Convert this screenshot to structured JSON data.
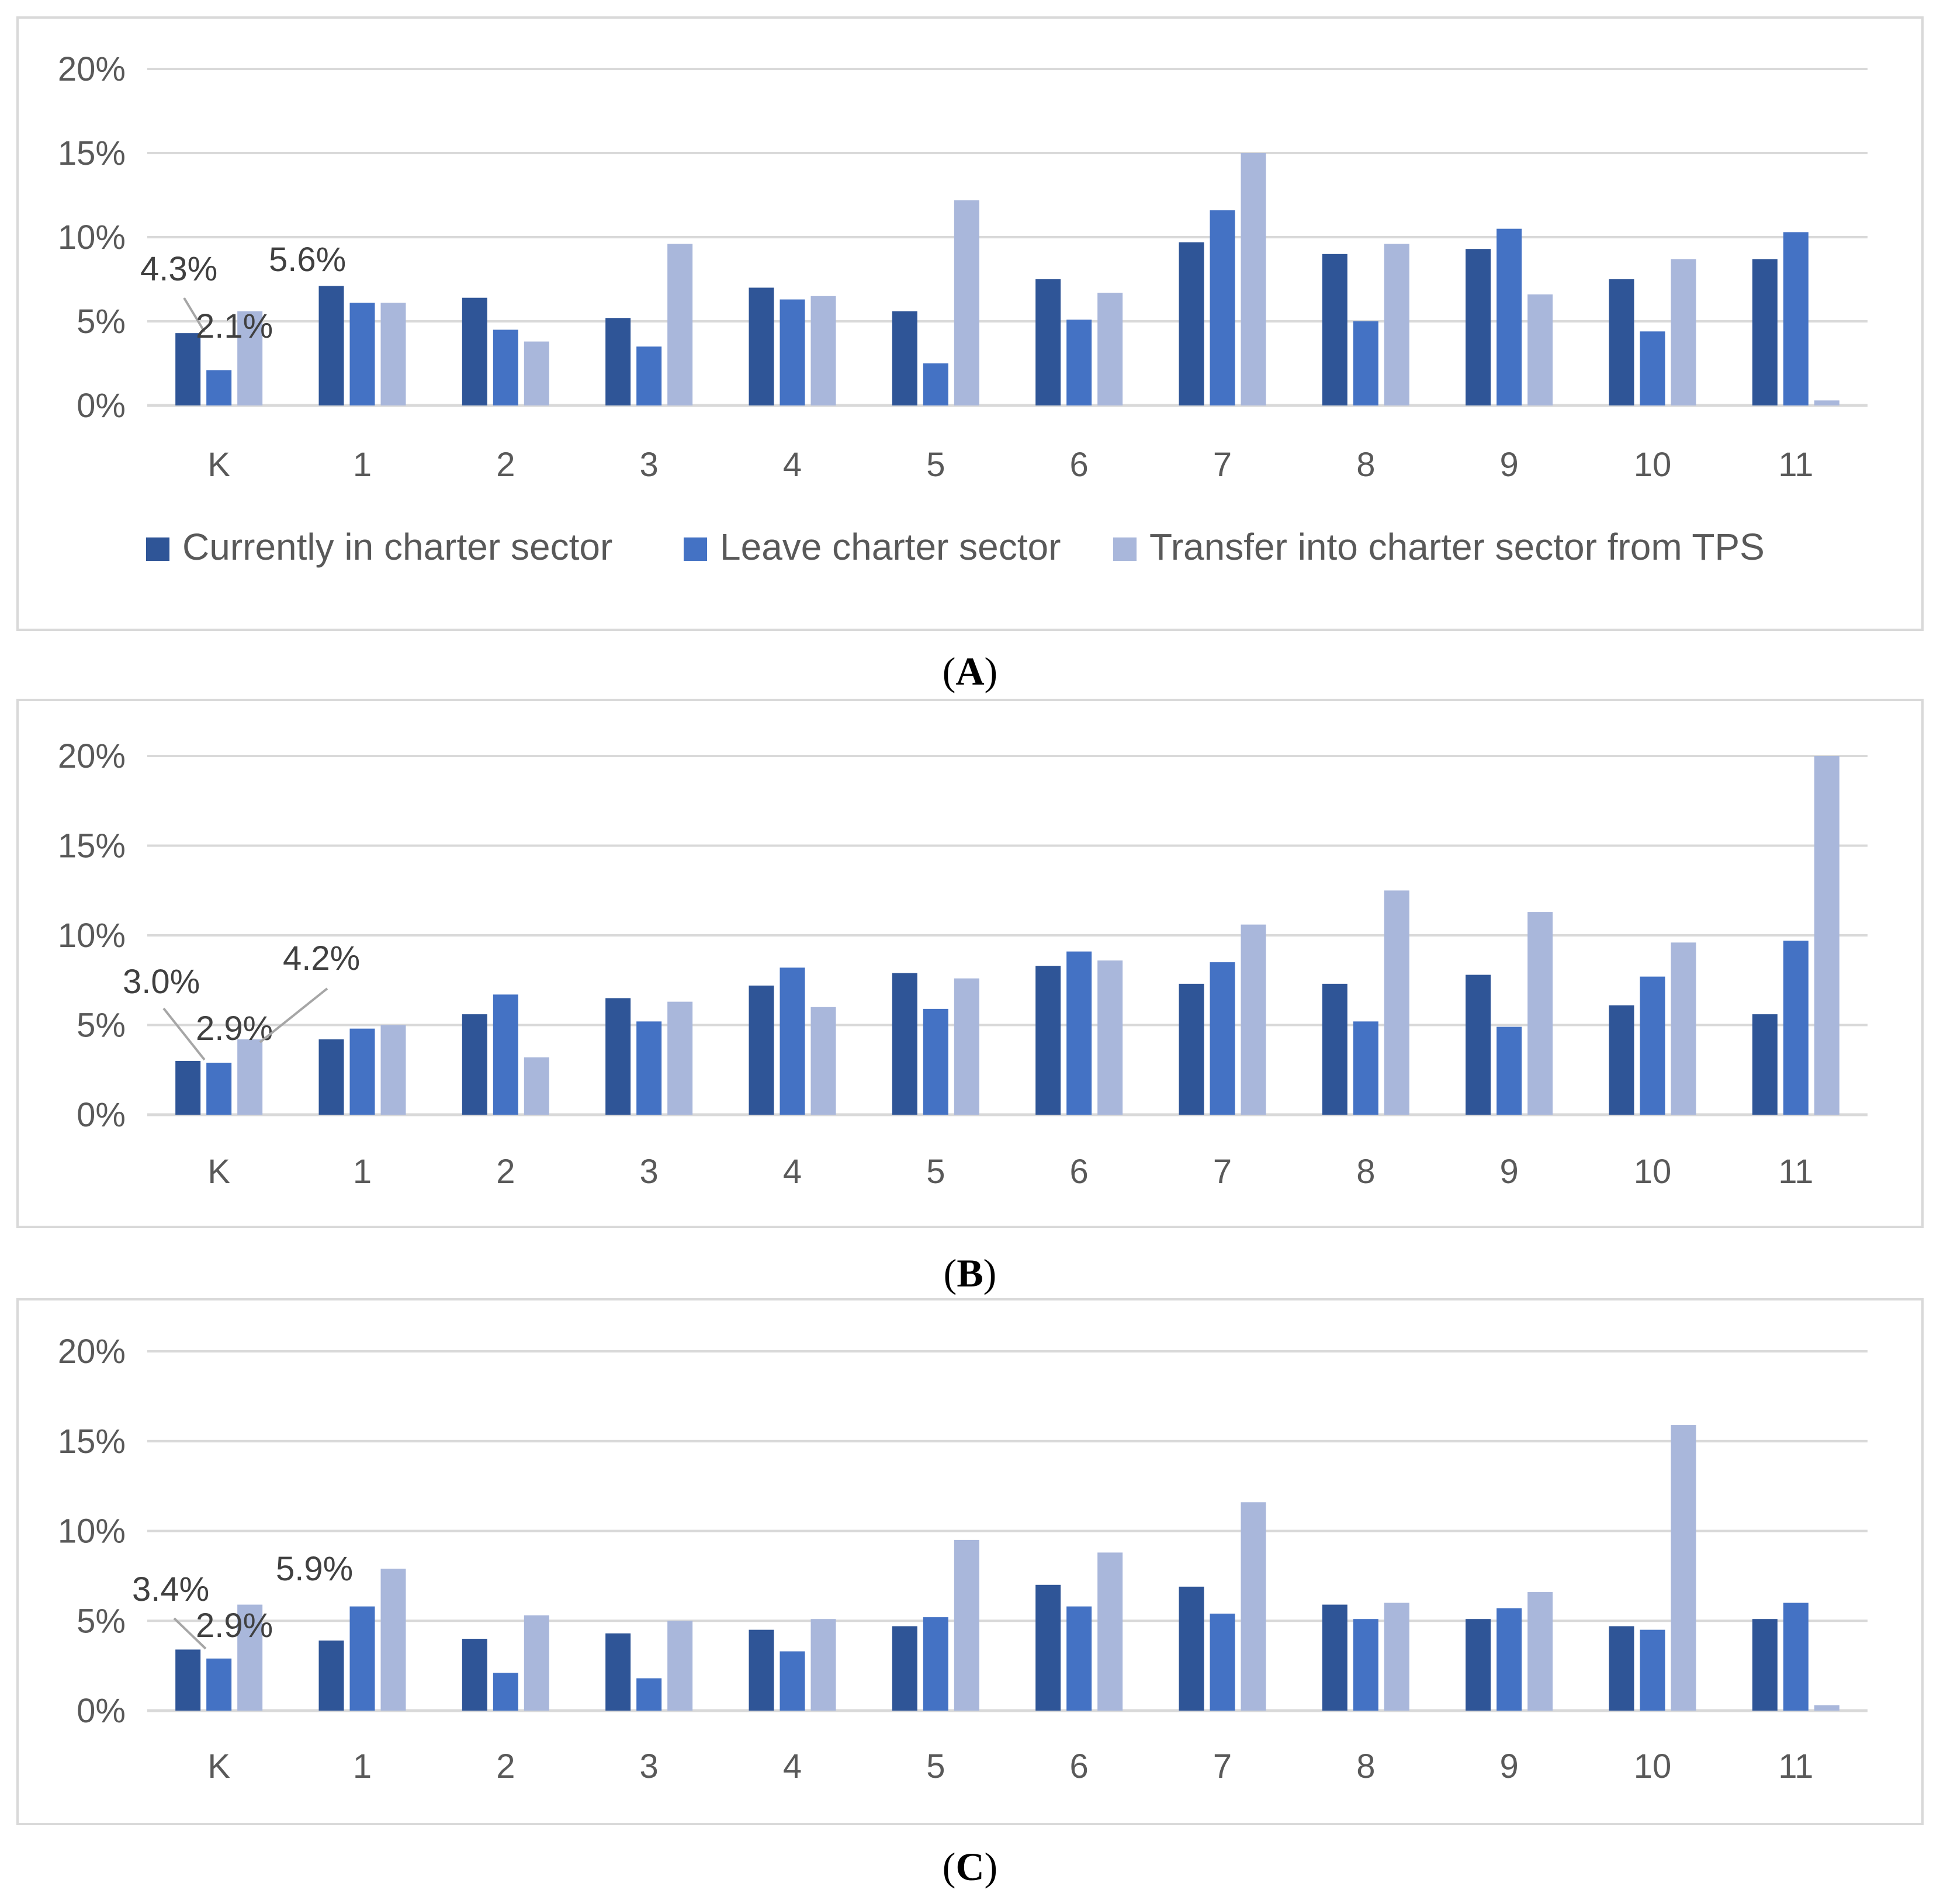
{
  "colors": {
    "currently": "#2F5597",
    "leave": "#4472C4",
    "transfer": "#A9B7DB",
    "grid": "#D9D9D9",
    "frame": "#D9D9D9",
    "axis": "#D9D9D9",
    "leader": "#A6A6A6"
  },
  "legend": [
    {
      "label": "Currently in charter sector",
      "color": "#2F5597"
    },
    {
      "label": "Leave charter sector",
      "color": "#4472C4"
    },
    {
      "label": "Transfer into charter sector from TPS",
      "color": "#A9B7DB"
    }
  ],
  "chart_data": [
    {
      "type": "bar",
      "caption": "A",
      "categories": [
        "K",
        "1",
        "2",
        "3",
        "4",
        "5",
        "6",
        "7",
        "8",
        "9",
        "10",
        "11"
      ],
      "ylim": [
        0,
        20
      ],
      "yticks": [
        "0%",
        "5%",
        "10%",
        "15%",
        "20%"
      ],
      "series": [
        {
          "name": "Currently in charter sector",
          "values": [
            4.3,
            7.1,
            6.4,
            5.2,
            7.0,
            5.6,
            7.5,
            9.7,
            9.0,
            9.3,
            7.5,
            8.7
          ]
        },
        {
          "name": "Leave charter sector",
          "values": [
            2.1,
            6.1,
            4.5,
            3.5,
            6.3,
            2.5,
            5.1,
            11.6,
            5.0,
            10.5,
            4.4,
            10.3
          ]
        },
        {
          "name": "Transfer into charter sector from TPS",
          "values": [
            5.6,
            6.1,
            3.8,
            9.6,
            6.5,
            12.2,
            6.7,
            15.0,
            9.6,
            6.6,
            8.7,
            0.3
          ]
        }
      ],
      "data_labels": [
        "4.3%",
        "2.1%",
        "5.6%"
      ]
    },
    {
      "type": "bar",
      "caption": "B",
      "categories": [
        "K",
        "1",
        "2",
        "3",
        "4",
        "5",
        "6",
        "7",
        "8",
        "9",
        "10",
        "11"
      ],
      "ylim": [
        0,
        20
      ],
      "yticks": [
        "0%",
        "5%",
        "10%",
        "15%",
        "20%"
      ],
      "series": [
        {
          "name": "Currently in charter sector",
          "values": [
            3.0,
            4.2,
            5.6,
            6.5,
            7.2,
            7.9,
            8.3,
            7.3,
            7.3,
            7.8,
            6.1,
            5.6
          ]
        },
        {
          "name": "Leave charter sector",
          "values": [
            2.9,
            4.8,
            6.7,
            5.2,
            8.2,
            5.9,
            9.1,
            8.5,
            5.2,
            4.9,
            7.7,
            9.7
          ]
        },
        {
          "name": "Transfer into charter sector from TPS",
          "values": [
            4.2,
            5.0,
            3.2,
            6.3,
            6.0,
            7.6,
            8.6,
            10.6,
            12.5,
            11.3,
            9.6,
            20.0
          ]
        }
      ],
      "data_labels": [
        "3.0%",
        "2.9%",
        "4.2%"
      ]
    },
    {
      "type": "bar",
      "caption": "C",
      "categories": [
        "K",
        "1",
        "2",
        "3",
        "4",
        "5",
        "6",
        "7",
        "8",
        "9",
        "10",
        "11"
      ],
      "ylim": [
        0,
        20
      ],
      "yticks": [
        "0%",
        "5%",
        "10%",
        "15%",
        "20%"
      ],
      "series": [
        {
          "name": "Currently in charter sector",
          "values": [
            3.4,
            3.9,
            4.0,
            4.3,
            4.5,
            4.7,
            7.0,
            6.9,
            5.9,
            5.1,
            4.7,
            5.1
          ]
        },
        {
          "name": "Leave charter sector",
          "values": [
            2.9,
            5.8,
            2.1,
            1.8,
            3.3,
            5.2,
            5.8,
            5.4,
            5.1,
            5.7,
            4.5,
            6.0
          ]
        },
        {
          "name": "Transfer into charter sector from TPS",
          "values": [
            5.9,
            7.9,
            5.3,
            5.0,
            5.1,
            9.5,
            8.8,
            11.6,
            6.0,
            6.6,
            15.9,
            0.3
          ]
        }
      ],
      "data_labels": [
        "3.4%",
        "2.9%",
        "5.9%"
      ]
    }
  ]
}
